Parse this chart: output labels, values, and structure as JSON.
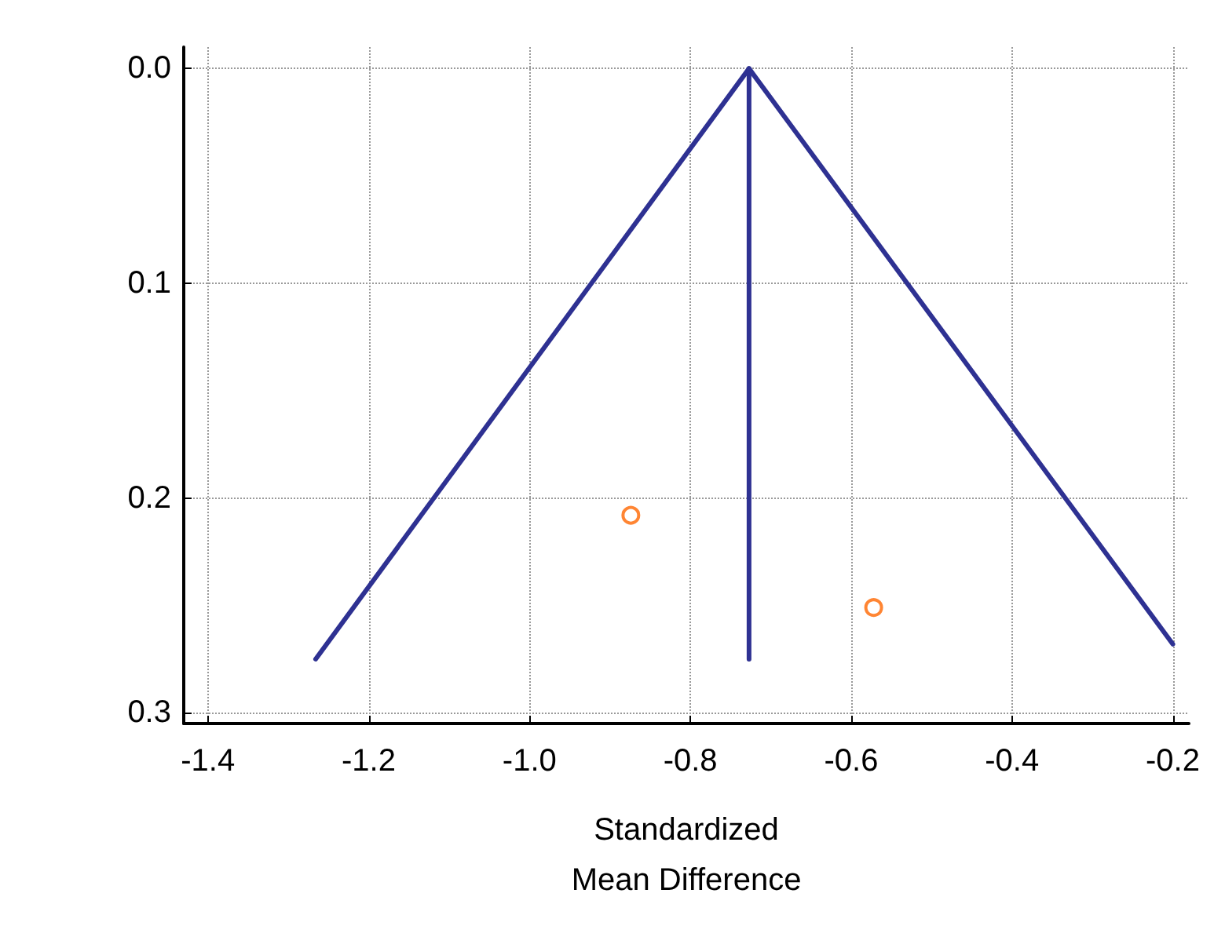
{
  "chart_data": {
    "type": "line",
    "xlabel": "Standardized Mean Difference",
    "xlim": [
      -1.43,
      -0.18
    ],
    "xticks": [
      -1.4,
      -1.2,
      {
        "value": -1.0,
        "label": "-1.0"
      },
      -0.8,
      -0.6,
      -0.4,
      -0.2
    ],
    "ylim": [
      0.305,
      -0.01
    ],
    "yticks": [
      {
        "value": 0,
        "label": "0.0"
      },
      0.1,
      0.2,
      0.3
    ],
    "grid": true,
    "series": [
      {
        "color": "#2e3192",
        "x": [
          -1.266,
          -0.727,
          -0.2
        ],
        "values": [
          0.275,
          0,
          0.268
        ],
        "marker": "none",
        "line_style": "solid"
      },
      {
        "color": "#2e3192",
        "x": [
          -0.727,
          -0.727
        ],
        "values": [
          0,
          0.275
        ],
        "marker": "none",
        "line_style": "solid"
      },
      {
        "type": "scatter",
        "color": "#ff6600",
        "x": [
          -0.874,
          -0.572
        ],
        "values": [
          0.208,
          0.251
        ],
        "marker": "circle"
      }
    ]
  }
}
